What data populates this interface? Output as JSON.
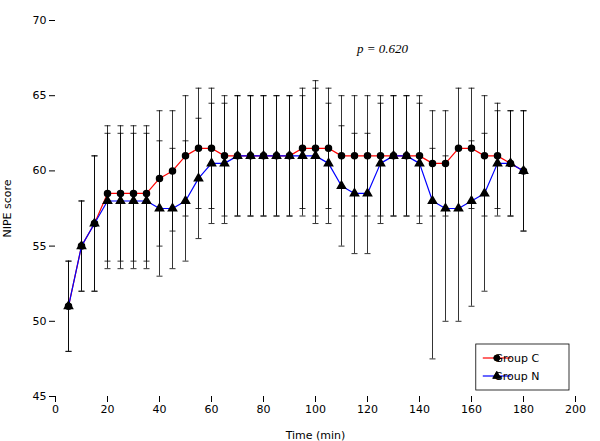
{
  "chart_data": {
    "type": "line",
    "xlabel": "Time (min)",
    "ylabel": "NIPE score",
    "annotations": [
      "p = 0.620"
    ],
    "x": [
      5,
      10,
      15,
      20,
      25,
      30,
      35,
      40,
      45,
      50,
      55,
      60,
      65,
      70,
      75,
      80,
      85,
      90,
      95,
      100,
      105,
      110,
      115,
      120,
      125,
      130,
      135,
      140,
      145,
      150,
      155,
      160,
      165,
      170,
      175,
      180
    ],
    "series": [
      {
        "name": "Group C",
        "color": "#FF0000",
        "marker": "circle",
        "values": [
          51.0,
          55.0,
          56.5,
          58.5,
          58.5,
          58.5,
          58.5,
          59.5,
          60.0,
          61.0,
          61.5,
          61.5,
          61.0,
          61.0,
          61.0,
          61.0,
          61.0,
          61.0,
          61.5,
          61.5,
          61.5,
          61.0,
          61.0,
          61.0,
          61.0,
          61.0,
          61.0,
          61.0,
          60.5,
          60.5,
          61.5,
          61.5,
          61.0,
          61.0,
          60.5,
          60.0
        ],
        "error_up": [
          3.0,
          3.0,
          4.5,
          4.5,
          4.5,
          4.5,
          4.5,
          4.5,
          4.0,
          4.0,
          4.0,
          4.0,
          4.0,
          4.0,
          4.0,
          4.0,
          4.0,
          4.0,
          4.0,
          4.5,
          4.0,
          4.0,
          4.0,
          4.0,
          4.0,
          4.0,
          4.0,
          4.0,
          3.5,
          3.5,
          4.0,
          4.0,
          4.0,
          3.5,
          3.5,
          4.0
        ],
        "error_down": [
          3.0,
          3.0,
          4.5,
          4.5,
          4.5,
          4.5,
          4.5,
          4.5,
          4.0,
          4.0,
          4.0,
          4.0,
          4.0,
          4.0,
          4.0,
          4.0,
          4.0,
          4.0,
          4.0,
          4.5,
          4.0,
          4.0,
          4.0,
          4.0,
          4.0,
          4.0,
          4.0,
          4.0,
          3.5,
          3.5,
          4.0,
          4.0,
          4.0,
          3.5,
          3.5,
          4.0
        ]
      },
      {
        "name": "Group N",
        "color": "#0000FF",
        "marker": "triangle",
        "values": [
          51.0,
          55.0,
          56.5,
          58.0,
          58.0,
          58.0,
          58.0,
          57.5,
          57.5,
          58.0,
          59.5,
          60.5,
          60.5,
          61.0,
          61.0,
          61.0,
          61.0,
          61.0,
          61.0,
          61.0,
          60.5,
          59.0,
          58.5,
          58.5,
          60.5,
          61.0,
          61.0,
          60.5,
          58.0,
          57.5,
          57.5,
          58.0,
          58.5,
          60.5,
          60.5,
          60.0
        ],
        "error_up": [
          3.0,
          3.0,
          4.5,
          4.5,
          4.5,
          4.5,
          4.5,
          4.5,
          4.0,
          4.0,
          4.0,
          4.0,
          4.0,
          4.0,
          4.0,
          4.0,
          4.0,
          4.0,
          4.0,
          4.5,
          4.0,
          4.0,
          4.0,
          4.0,
          4.0,
          4.0,
          4.0,
          4.0,
          3.5,
          3.5,
          4.0,
          4.0,
          4.0,
          3.5,
          3.5,
          4.0
        ],
        "error_down": [
          3.0,
          3.0,
          4.5,
          4.5,
          4.5,
          4.5,
          4.5,
          4.5,
          4.0,
          4.0,
          4.0,
          4.0,
          4.0,
          4.0,
          4.0,
          4.0,
          4.0,
          4.0,
          4.0,
          4.5,
          4.0,
          4.0,
          4.0,
          4.0,
          4.0,
          4.0,
          4.0,
          4.0,
          10.5,
          7.5,
          7.5,
          7.0,
          6.5,
          3.5,
          3.5,
          4.0
        ]
      }
    ],
    "xlim": [
      0,
      200
    ],
    "xticks": [
      0,
      20,
      40,
      60,
      80,
      100,
      120,
      140,
      160,
      180,
      200
    ],
    "ylim": [
      45,
      70
    ],
    "yticks": [
      45,
      50,
      55,
      60,
      65,
      70
    ],
    "grid": false,
    "legend": "lower right"
  }
}
